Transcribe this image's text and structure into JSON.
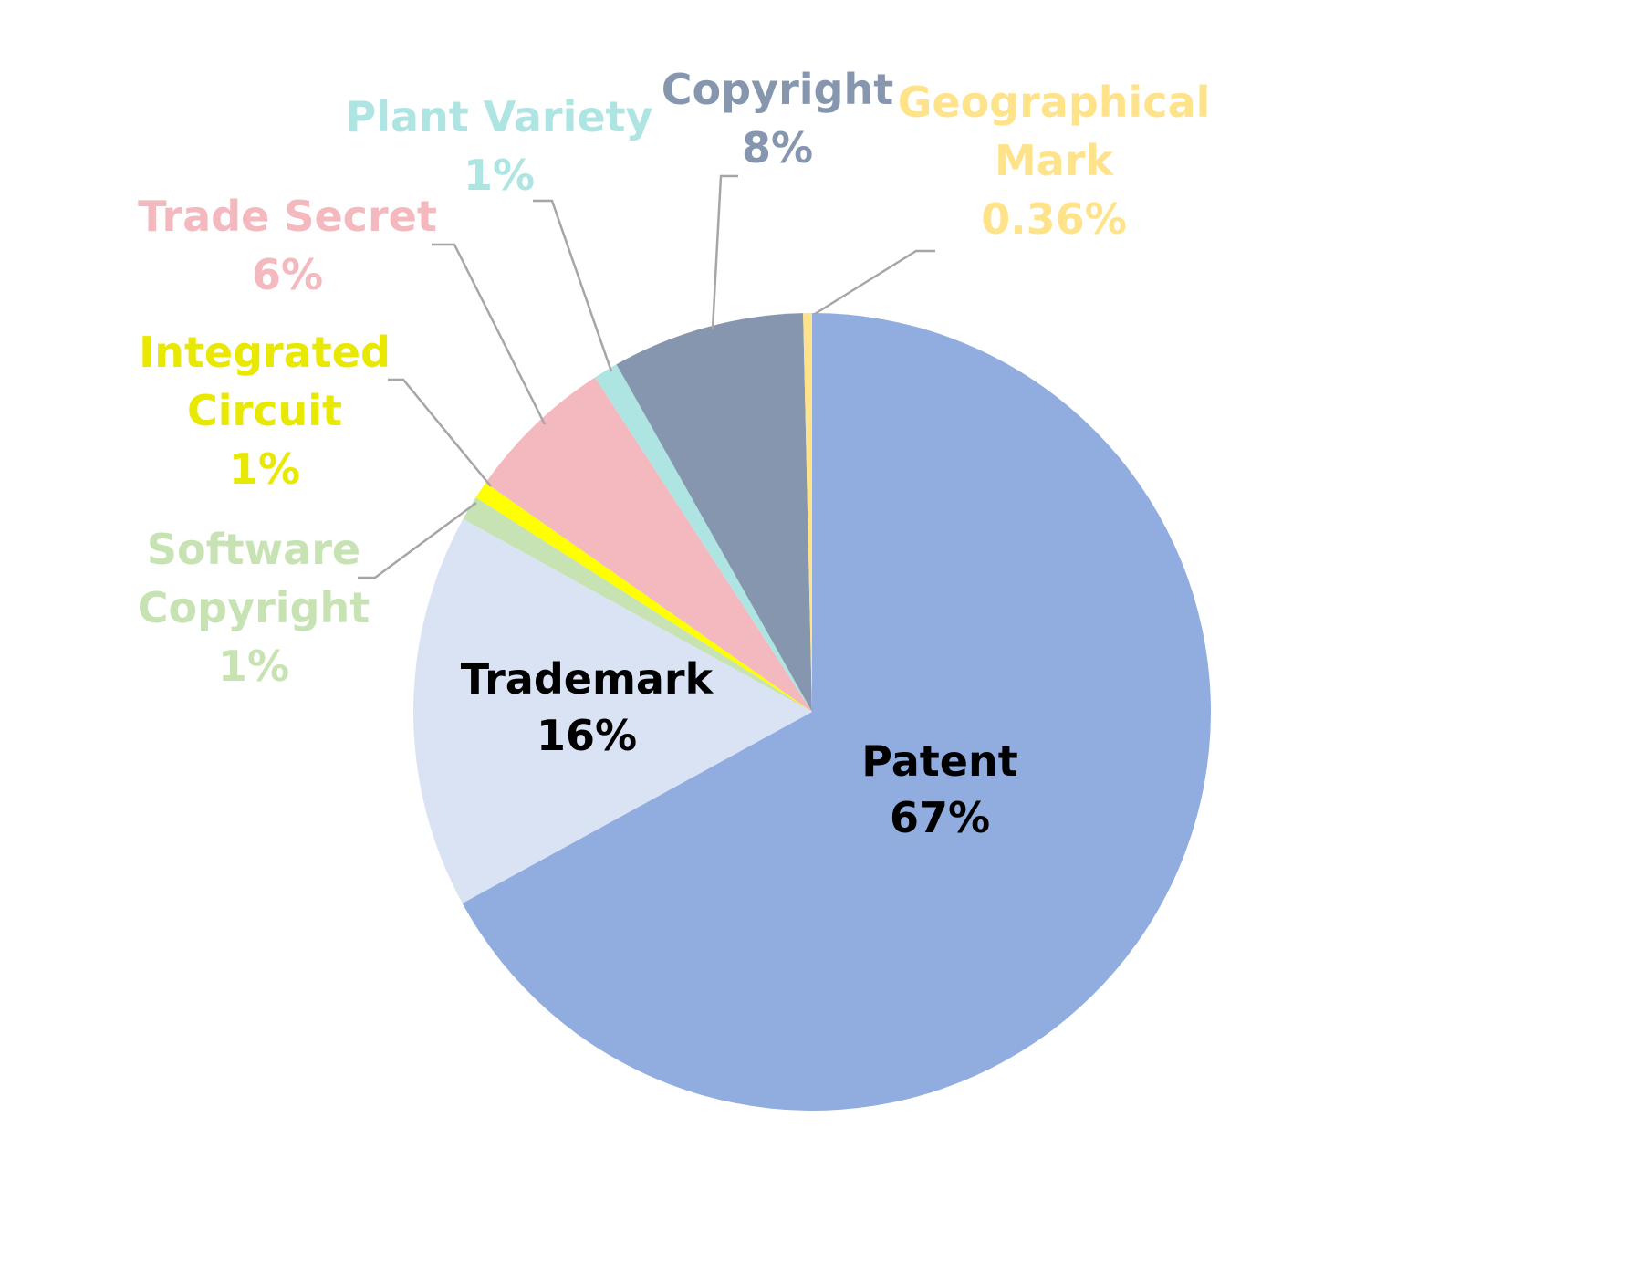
{
  "chart_data": {
    "type": "pie",
    "title": "",
    "start_angle_deg": 0,
    "direction": "clockwise",
    "slices": [
      {
        "label_lines": [
          "Patent"
        ],
        "pct_text": "67%",
        "value": 67.0,
        "color": "#91ADE0",
        "label_color": "#000000",
        "label_inside": true
      },
      {
        "label_lines": [
          "Trademark"
        ],
        "pct_text": "16%",
        "value": 16.0,
        "color": "#DAE3F4",
        "label_color": "#000000",
        "label_inside": true
      },
      {
        "label_lines": [
          "Software",
          "Copyright"
        ],
        "pct_text": "1%",
        "value": 1.0,
        "color": "#C8E3B3",
        "label_color": "#C8E3B3",
        "label_inside": false
      },
      {
        "label_lines": [
          "Integrated",
          "Circuit"
        ],
        "pct_text": "1%",
        "value": 0.7,
        "color": "#FFFF00",
        "label_color": "#E8E800",
        "label_inside": false
      },
      {
        "label_lines": [
          "Trade Secret"
        ],
        "pct_text": "6%",
        "value": 6.1,
        "color": "#F4B8BF",
        "label_color": "#F4B8BF",
        "label_inside": false
      },
      {
        "label_lines": [
          "Plant Variety"
        ],
        "pct_text": "1%",
        "value": 1.0,
        "color": "#AEE5E3",
        "label_color": "#AEE5E3",
        "label_inside": false
      },
      {
        "label_lines": [
          "Copyright"
        ],
        "pct_text": "8%",
        "value": 7.8,
        "color": "#8696AF",
        "label_color": "#8696AF",
        "label_inside": false
      },
      {
        "label_lines": [
          "Geographical",
          "Mark"
        ],
        "pct_text": "0.36%",
        "value": 0.36,
        "color": "#FFE38A",
        "label_color": "#FFE38A",
        "label_inside": false
      }
    ]
  }
}
